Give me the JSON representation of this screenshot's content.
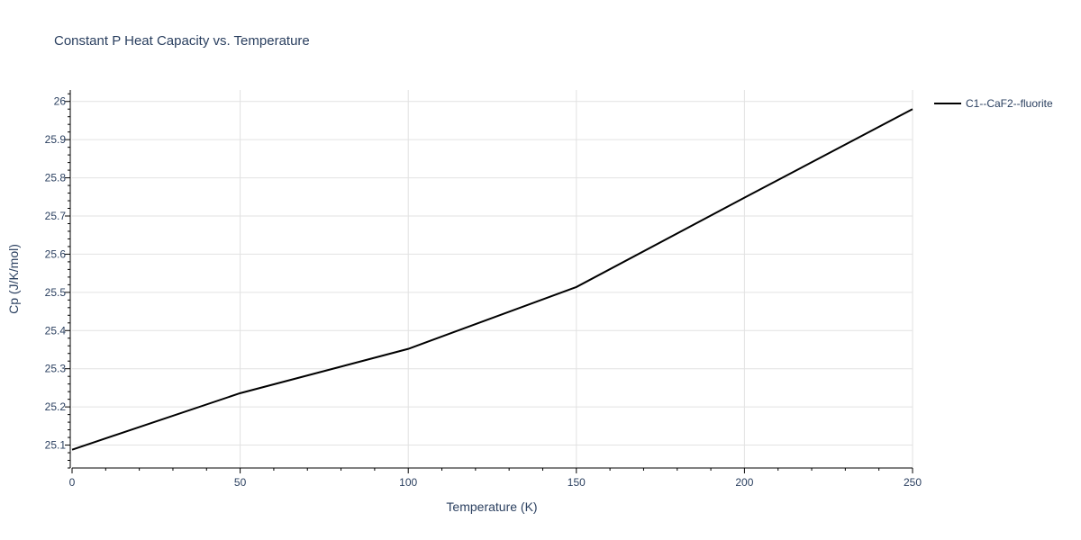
{
  "chart_data": {
    "type": "line",
    "title": "Constant P Heat Capacity vs. Temperature",
    "xlabel": "Temperature (K)",
    "ylabel": "Cp (J/K/mol)",
    "xlim": [
      0,
      250
    ],
    "ylim": [
      25.04,
      26.03
    ],
    "x_ticks": [
      0,
      50,
      100,
      150,
      200,
      250
    ],
    "y_ticks": [
      25.1,
      25.2,
      25.3,
      25.4,
      25.5,
      25.6,
      25.7,
      25.8,
      25.9,
      26
    ],
    "x_tick_labels": [
      "0",
      "50",
      "100",
      "150",
      "200",
      "250"
    ],
    "y_tick_labels": [
      "25.1",
      "25.2",
      "25.3",
      "25.4",
      "25.5",
      "25.6",
      "25.7",
      "25.8",
      "25.9",
      "26"
    ],
    "grid": true,
    "legend_position": "top-right, outside plot",
    "series": [
      {
        "name": "C1--CaF2--fluorite",
        "color": "#000000",
        "x": [
          0,
          50,
          100,
          150,
          200,
          250
        ],
        "y": [
          25.088,
          25.236,
          25.352,
          25.514,
          25.748,
          25.98
        ]
      }
    ]
  }
}
